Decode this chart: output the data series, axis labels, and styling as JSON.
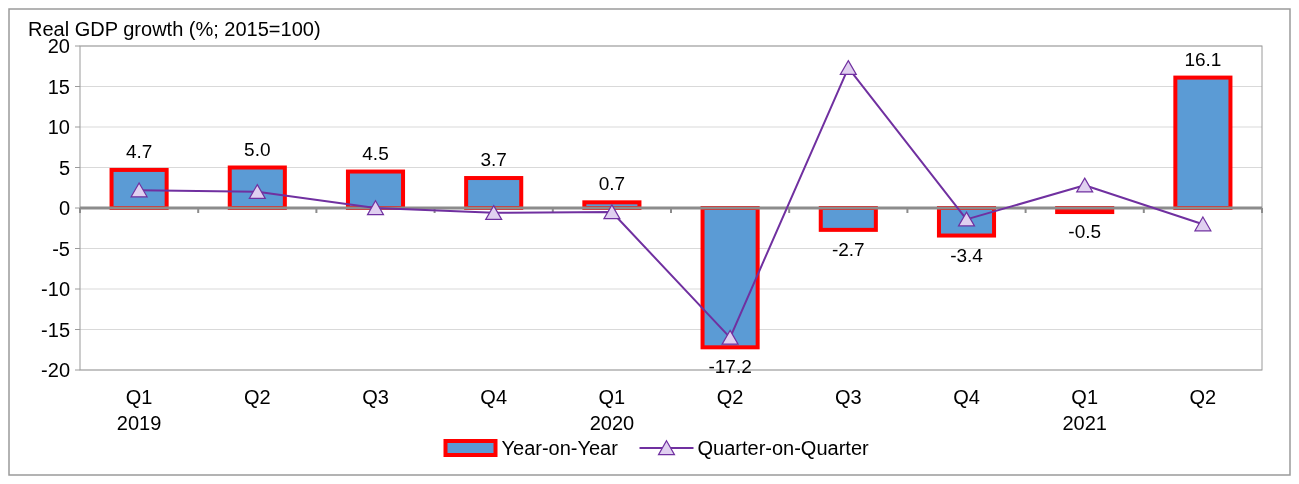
{
  "chart_data": {
    "type": "bar",
    "title": "Real GDP growth (%; 2015=100)",
    "categories": [
      "Q1\n2019",
      "Q2",
      "Q3",
      "Q4",
      "Q1\n2020",
      "Q2",
      "Q3",
      "Q4",
      "Q1\n2021",
      "Q2"
    ],
    "series": [
      {
        "name": "Year-on-Year",
        "color": "#5b9bd5",
        "values": [
          4.7,
          5.0,
          4.5,
          3.7,
          0.7,
          -17.2,
          -2.7,
          -3.4,
          -0.5,
          16.1
        ],
        "value_labels": [
          "4.7",
          "5.0",
          "4.5",
          "3.7",
          "0.7",
          "-17.2",
          "-2.7",
          "-3.4",
          "-0.5",
          "16.1"
        ]
      },
      {
        "name": "Quarter-on-Quarter",
        "type": "line",
        "color": "#7030a0",
        "marker": "triangle",
        "values": [
          2.2,
          2.0,
          0.0,
          -0.6,
          -0.5,
          -16.0,
          17.3,
          -1.4,
          2.8,
          -2.0
        ]
      }
    ],
    "ylim": [
      -20,
      20
    ],
    "yticks": [
      -20,
      -15,
      -10,
      -5,
      0,
      5,
      10,
      15,
      20
    ],
    "grid": "y",
    "legend": "bottom"
  }
}
